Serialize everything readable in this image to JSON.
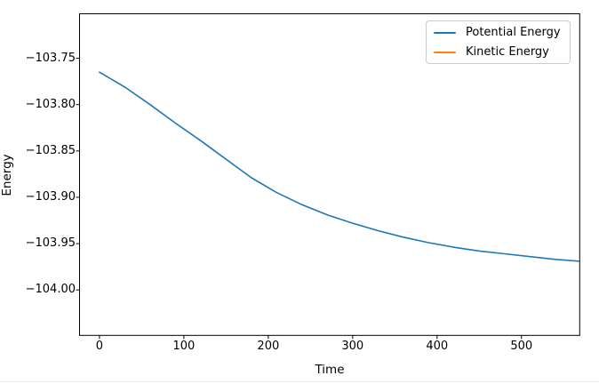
{
  "figure": {
    "background": "#ffffff",
    "bottom_edge_line_color": "#e9ebee",
    "text_color": "#000000",
    "spine_color": "#000000"
  },
  "chart_data": {
    "type": "line",
    "title": "",
    "xlabel": "Time",
    "ylabel": "Energy",
    "xlim": [
      -23.6,
      569
    ],
    "ylim": [
      -104.049,
      -103.702
    ],
    "xticks": [
      0,
      100,
      200,
      300,
      400,
      500
    ],
    "xtick_labels": [
      "0",
      "100",
      "200",
      "300",
      "400",
      "500"
    ],
    "yticks": [
      -103.75,
      -103.8,
      -103.85,
      -103.9,
      -103.95,
      -104.0
    ],
    "ytick_labels": [
      "−103.75",
      "−103.80",
      "−103.85",
      "−103.90",
      "−103.95",
      "−104.00"
    ],
    "grid": false,
    "legend": {
      "position": "upper right",
      "entries": [
        "Potential Energy",
        "Kinetic Energy"
      ]
    },
    "series": [
      {
        "name": "Potential Energy",
        "color": "#1f77b4",
        "line_width": 1.6,
        "x": [
          0,
          30,
          60,
          90,
          120,
          150,
          180,
          210,
          240,
          270,
          300,
          330,
          360,
          390,
          420,
          450,
          480,
          510,
          540,
          569
        ],
        "y": [
          -103.765,
          -103.781,
          -103.8,
          -103.82,
          -103.839,
          -103.859,
          -103.879,
          -103.895,
          -103.908,
          -103.919,
          -103.928,
          -103.936,
          -103.943,
          -103.949,
          -103.954,
          -103.958,
          -103.961,
          -103.964,
          -103.967,
          -103.969
        ]
      },
      {
        "name": "Kinetic Energy",
        "color": "#ff7f0e",
        "line_width": 1.6,
        "x": [],
        "y": [],
        "visible_in_plot": false
      }
    ]
  }
}
